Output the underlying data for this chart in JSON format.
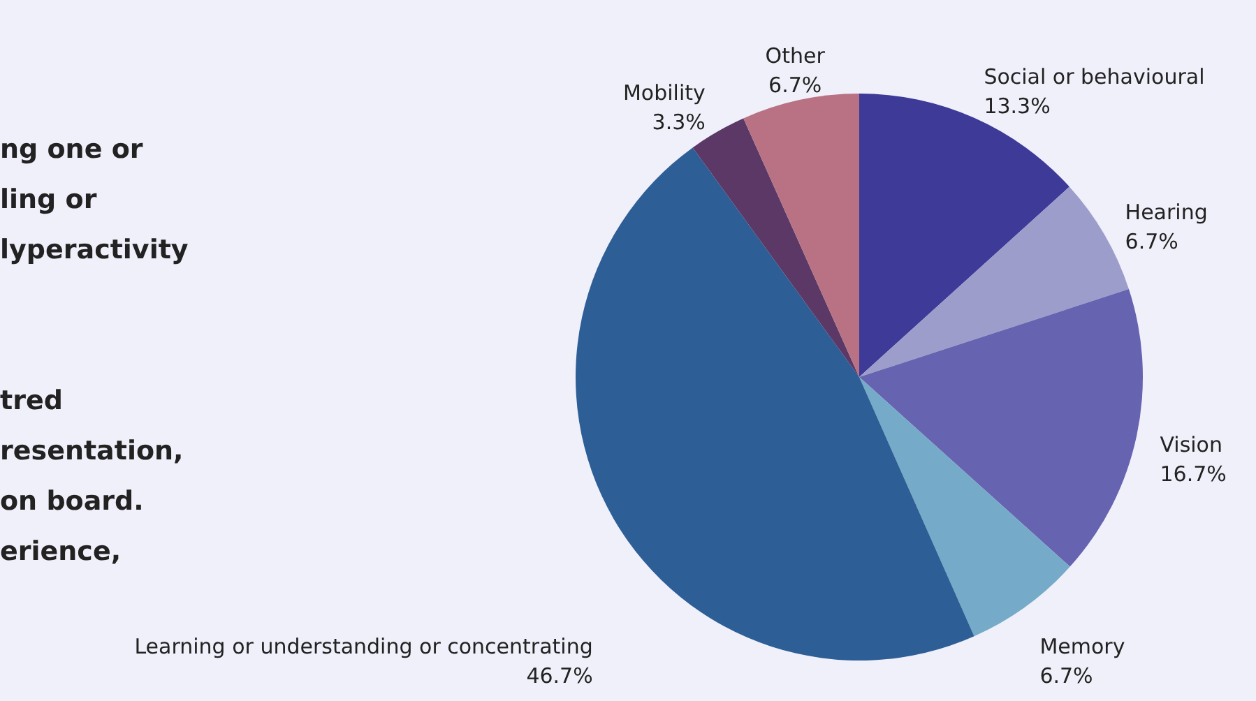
{
  "chart_data": {
    "type": "pie",
    "categories": [
      "Social or behavioural",
      "Hearing",
      "Vision",
      "Memory",
      "Learning or understanding or concentrating",
      "Mobility",
      "Other"
    ],
    "values": [
      13.3,
      6.7,
      16.7,
      6.7,
      46.7,
      3.3,
      6.7
    ],
    "colors": [
      "#3d3a98",
      "#9d9dcc",
      "#6663b0",
      "#75abc8",
      "#2e5e96",
      "#5b3866",
      "#b87283"
    ],
    "value_labels": [
      "13.3%",
      "6.7%",
      "16.7%",
      "6.7%",
      "46.7%",
      "3.3%",
      "6.7%"
    ],
    "annotations": [
      "ng one or\nling or\nlyperactivity",
      "tred\nresentation,\non board.\nerience,"
    ]
  }
}
